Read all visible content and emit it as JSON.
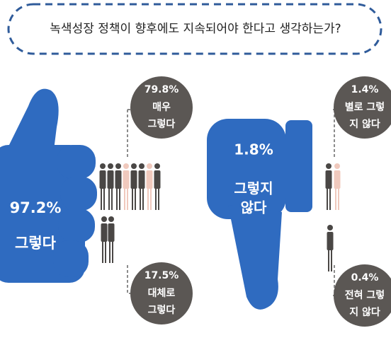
{
  "title": "녹색성장 정책이 향후에도 지속되어야 한다고 생각하는가?",
  "positive": {
    "total": "97.2%",
    "label": "그렇다",
    "breakdown": [
      {
        "value": "79.8%",
        "label_lines": [
          "매우",
          "그렇다"
        ]
      },
      {
        "value": "17.5%",
        "label_lines": [
          "대체로",
          "그렇다"
        ]
      }
    ]
  },
  "negative": {
    "total": "1.8%",
    "label_lines": [
      "그렇지",
      "않다"
    ],
    "breakdown": [
      {
        "value": "1.4%",
        "label_lines": [
          "별로 그렇",
          "지 않다"
        ]
      },
      {
        "value": "0.4%",
        "label_lines": [
          "전혀 그렇",
          "지 않다"
        ]
      }
    ]
  }
}
